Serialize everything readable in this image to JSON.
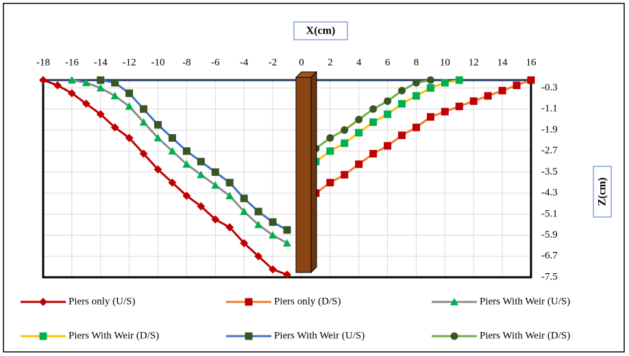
{
  "chart_data": {
    "type": "line",
    "x_axis_title": "X(cm)",
    "y_axis_title": "Z(cm)",
    "xlim": [
      -18,
      16
    ],
    "xticks": [
      -18,
      -16,
      -14,
      -12,
      -10,
      -8,
      -6,
      -4,
      -2,
      0,
      2,
      4,
      6,
      8,
      10,
      12,
      14,
      16
    ],
    "ylim": [
      -7.5,
      0
    ],
    "yticks": [
      -0.3,
      -1.1,
      -1.9,
      -2.7,
      -3.5,
      -4.3,
      -5.1,
      -5.9,
      -6.7,
      -7.5
    ],
    "grid": true,
    "series": [
      {
        "name": "Piers only (U/S)",
        "color": "#c00000",
        "line_color": "#c00000",
        "marker": "diamond",
        "x": [
          -18,
          -17,
          -16,
          -15,
          -14,
          -13,
          -12,
          -11,
          -10,
          -9,
          -8,
          -7,
          -6,
          -5,
          -4,
          -3,
          -2,
          -1
        ],
        "values": [
          0,
          -0.2,
          -0.5,
          -0.9,
          -1.3,
          -1.8,
          -2.2,
          -2.8,
          -3.4,
          -3.9,
          -4.4,
          -4.8,
          -5.3,
          -5.6,
          -6.2,
          -6.7,
          -7.2,
          -7.4
        ]
      },
      {
        "name": "Piers only (D/S)",
        "color": "#c00000",
        "line_color": "#ed7d31",
        "marker": "square",
        "x": [
          1,
          2,
          3,
          4,
          5,
          6,
          7,
          8,
          9,
          10,
          11,
          12,
          13,
          14,
          15,
          16
        ],
        "values": [
          -4.3,
          -3.9,
          -3.6,
          -3.2,
          -2.8,
          -2.5,
          -2.1,
          -1.8,
          -1.4,
          -1.2,
          -1.0,
          -0.8,
          -0.6,
          -0.4,
          -0.2,
          0
        ]
      },
      {
        "name": "Piers With Weir (U/S)",
        "color": "#00b050",
        "line_color": "#8c8c8c",
        "marker": "triangle",
        "x": [
          -16,
          -15,
          -14,
          -13,
          -12,
          -11,
          -10,
          -9,
          -8,
          -7,
          -6,
          -5,
          -4,
          -3,
          -2,
          -1
        ],
        "values": [
          0,
          -0.1,
          -0.3,
          -0.6,
          -1.0,
          -1.6,
          -2.2,
          -2.7,
          -3.2,
          -3.6,
          -4.0,
          -4.4,
          -5.0,
          -5.5,
          -5.9,
          -6.2
        ]
      },
      {
        "name": "Piers With Weir (D/S)",
        "color": "#00b050",
        "line_color": "#ffc000",
        "marker": "square",
        "x": [
          1,
          2,
          3,
          4,
          5,
          6,
          7,
          8,
          9,
          10,
          11
        ],
        "values": [
          -3.1,
          -2.7,
          -2.4,
          -2.0,
          -1.6,
          -1.3,
          -0.9,
          -0.6,
          -0.3,
          -0.1,
          0
        ]
      },
      {
        "name": "Piers With Weir (U/S)",
        "color": "#375623",
        "line_color": "#4472c4",
        "marker": "square",
        "x": [
          -14,
          -13,
          -12,
          -11,
          -10,
          -9,
          -8,
          -7,
          -6,
          -5,
          -4,
          -3,
          -2,
          -1
        ],
        "values": [
          0,
          -0.1,
          -0.5,
          -1.1,
          -1.7,
          -2.2,
          -2.7,
          -3.1,
          -3.5,
          -3.9,
          -4.5,
          -5.0,
          -5.4,
          -5.7
        ]
      },
      {
        "name": "Piers With Weir (D/S)",
        "color": "#375623",
        "line_color": "#70ad47",
        "marker": "circle",
        "x": [
          1,
          2,
          3,
          4,
          5,
          6,
          7,
          8,
          9
        ],
        "values": [
          -2.6,
          -2.2,
          -1.9,
          -1.5,
          -1.1,
          -0.8,
          -0.4,
          -0.1,
          0
        ]
      }
    ]
  }
}
